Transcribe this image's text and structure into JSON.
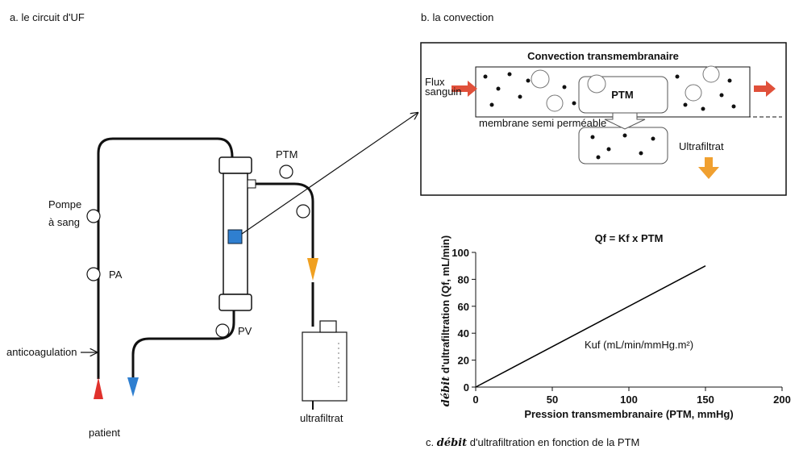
{
  "panel_a": {
    "title": "a. le circuit d'UF",
    "pump": [
      "Pompe",
      "à sang"
    ],
    "pa": "PA",
    "ptm": "PTM",
    "pv": "PV",
    "anticoagulation": "anticoagulation",
    "patient": "patient",
    "ultrafiltrat": "ultrafiltrat"
  },
  "panel_b": {
    "title": "b. la convection",
    "box_title": "Convection transmembranaire",
    "flux": [
      "Flux",
      "sanguin"
    ],
    "ptm": "PTM",
    "membrane": "membrane semi perméable",
    "ultrafiltrat": "Ultrafiltrat"
  },
  "chart_data": {
    "type": "line",
    "title": "Qf = Kf x PTM",
    "ylabel": [
      "débit",
      "d'ultrafiltration (Qf, mL/min)"
    ],
    "xlabel": "Pression transmembranaire (PTM, mmHg)",
    "annotation": "Kuf (mL/min/mmHg.m²)",
    "x": [
      0,
      150
    ],
    "values": [
      0,
      90
    ],
    "color": "#000000",
    "xlim": [
      0,
      200
    ],
    "ylim": [
      0,
      100
    ],
    "xticks": [
      0,
      50,
      100,
      150,
      200
    ],
    "yticks": [
      0,
      20,
      40,
      60,
      80,
      100
    ]
  },
  "caption": {
    "letter": "c.",
    "emphasis": "débit",
    "text": "d'ultrafiltration en fonction de la PTM"
  }
}
